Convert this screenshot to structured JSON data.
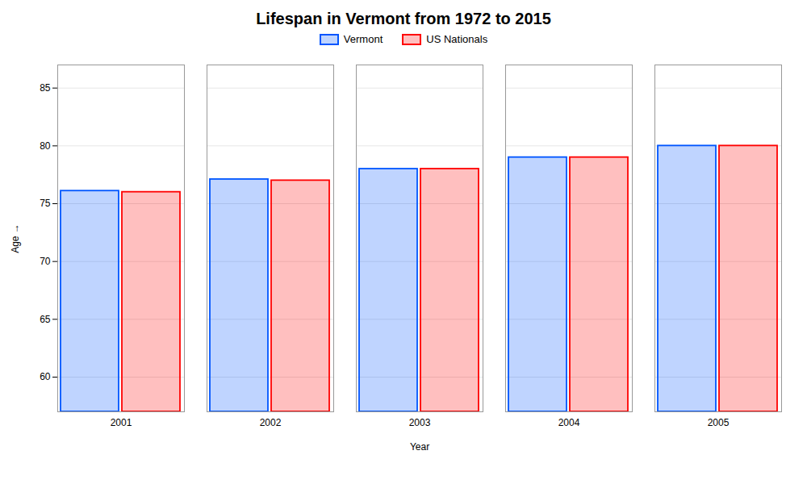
{
  "chart_data": {
    "type": "bar",
    "title": "Lifespan in Vermont from 1972 to 2015",
    "xlabel": "Year",
    "ylabel": "Age",
    "categories": [
      "2001",
      "2002",
      "2003",
      "2004",
      "2005"
    ],
    "series": [
      {
        "name": "Vermont",
        "color": "#0055ff",
        "values": [
          76.1,
          77.1,
          78.0,
          79.0,
          80.0
        ]
      },
      {
        "name": "US Nationals",
        "color": "#ff0000",
        "values": [
          76.0,
          77.0,
          78.0,
          79.0,
          80.0
        ]
      }
    ],
    "ylim": [
      57,
      87
    ],
    "yticks": [
      60,
      65,
      70,
      75,
      80,
      85
    ],
    "grid": true,
    "legend": "top"
  }
}
